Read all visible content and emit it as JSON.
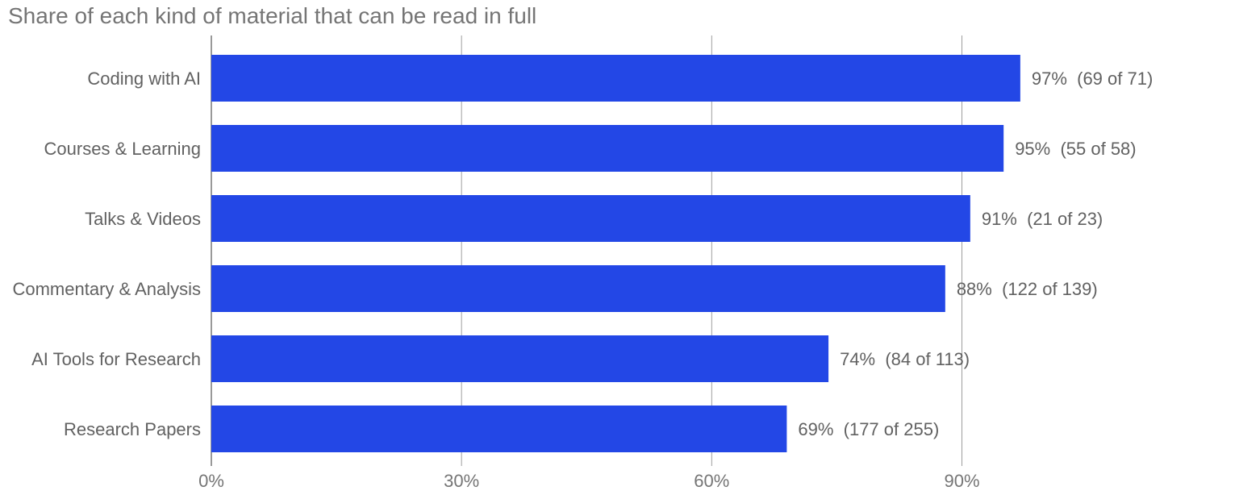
{
  "chart_data": {
    "type": "bar",
    "orientation": "horizontal",
    "title": "Share of each kind of material that can be read in full",
    "categories": [
      "Coding with AI",
      "Courses & Learning",
      "Talks & Videos",
      "Commentary & Analysis",
      "AI Tools for Research",
      "Research Papers"
    ],
    "values": [
      97,
      95,
      91,
      88,
      74,
      69
    ],
    "data_labels": [
      "97%  (69 of 71)",
      "95%  (55 of 58)",
      "91%  (21 of 23)",
      "88%  (122 of 139)",
      "74%  (84 of 113)",
      "69%  (177 of 255)"
    ],
    "x_ticks": [
      0,
      30,
      60,
      90
    ],
    "x_tick_labels": [
      "0%",
      "30%",
      "60%",
      "90%"
    ],
    "xlim": [
      0,
      121
    ],
    "xlabel": "",
    "ylabel": "",
    "grid": true,
    "legend": "none",
    "bar_color": "#2347e6"
  }
}
